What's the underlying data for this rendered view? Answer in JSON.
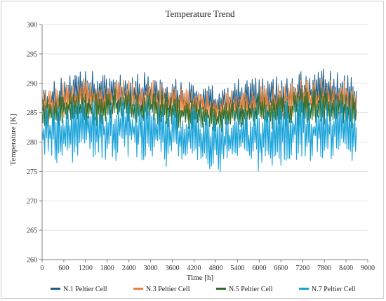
{
  "chart_data": {
    "type": "line",
    "title": "Temperature Trend",
    "xlabel": "Time [h]",
    "ylabel": "Temperature [K]",
    "xlim": [
      0,
      9000
    ],
    "ylim": [
      260,
      300
    ],
    "x_ticks": [
      0,
      600,
      1200,
      1800,
      2400,
      3000,
      3600,
      4200,
      4800,
      5400,
      6000,
      6600,
      7200,
      7800,
      8400,
      9000
    ],
    "y_ticks": [
      260,
      265,
      270,
      275,
      280,
      285,
      290,
      295,
      300
    ],
    "grid": "horizontal",
    "legend_position": "bottom",
    "x": [
      0,
      300,
      600,
      900,
      1200,
      1500,
      1800,
      2100,
      2400,
      2700,
      3000,
      3300,
      3600,
      3900,
      4200,
      4500,
      4800,
      5100,
      5400,
      5700,
      6000,
      6300,
      6600,
      6900,
      7200,
      7500,
      7800,
      8100,
      8400,
      8700
    ],
    "series": [
      {
        "name": "N.1 Peltier Cell",
        "color": "#1f5f8b",
        "upper": [
          290.5,
          290.2,
          292.0,
          291.5,
          292.5,
          292.0,
          291.5,
          292.2,
          292.0,
          291.8,
          292.2,
          291.5,
          291.0,
          290.5,
          290.5,
          290.0,
          289.5,
          290.0,
          291.0,
          290.5,
          291.5,
          290.8,
          291.5,
          292.0,
          292.5,
          292.0,
          292.5,
          291.8,
          292.0,
          290.5
        ],
        "lower": [
          284.5,
          284.0,
          284.5,
          285.0,
          285.0,
          284.5,
          285.0,
          285.0,
          284.8,
          285.0,
          285.0,
          284.5,
          284.0,
          284.0,
          284.2,
          284.0,
          283.5,
          284.0,
          284.0,
          284.0,
          284.0,
          284.0,
          284.5,
          284.5,
          285.0,
          285.0,
          285.0,
          284.5,
          284.5,
          284.0
        ]
      },
      {
        "name": "N.3 Peltier Cell",
        "color": "#e8823a",
        "upper": [
          289.0,
          288.8,
          290.5,
          290.0,
          291.0,
          290.5,
          290.0,
          290.8,
          290.5,
          290.2,
          290.8,
          290.0,
          289.5,
          289.0,
          289.0,
          288.5,
          288.0,
          288.5,
          289.5,
          289.0,
          290.0,
          289.3,
          290.0,
          290.5,
          291.0,
          290.5,
          291.0,
          290.3,
          290.5,
          289.0
        ],
        "lower": [
          284.0,
          283.5,
          284.0,
          284.5,
          284.5,
          284.0,
          284.5,
          284.5,
          284.3,
          284.5,
          284.5,
          284.0,
          283.5,
          283.5,
          283.7,
          283.5,
          283.0,
          283.5,
          283.5,
          283.5,
          283.5,
          283.5,
          284.0,
          284.0,
          284.5,
          284.5,
          284.5,
          284.0,
          284.0,
          283.5
        ]
      },
      {
        "name": "N.5 Peltier Cell",
        "color": "#2e6f2a",
        "upper": [
          287.5,
          287.3,
          289.0,
          288.5,
          289.5,
          289.0,
          288.5,
          289.3,
          289.0,
          288.7,
          289.3,
          288.5,
          288.0,
          287.5,
          287.5,
          287.0,
          286.5,
          287.0,
          288.0,
          287.5,
          288.5,
          287.8,
          288.5,
          289.0,
          289.5,
          289.0,
          289.5,
          288.8,
          289.0,
          287.5
        ],
        "lower": [
          282.5,
          282.0,
          282.8,
          283.0,
          283.0,
          282.5,
          283.0,
          283.0,
          282.8,
          283.0,
          283.0,
          282.5,
          282.0,
          282.0,
          282.2,
          282.0,
          281.5,
          282.0,
          282.0,
          282.0,
          282.0,
          282.0,
          282.5,
          282.5,
          283.0,
          283.0,
          283.0,
          282.5,
          282.5,
          282.0
        ]
      },
      {
        "name": "N.7 Peltier Cell",
        "color": "#1aa3d9",
        "upper": [
          286.0,
          286.0,
          287.5,
          287.0,
          288.0,
          287.5,
          287.0,
          287.8,
          287.5,
          287.2,
          287.8,
          287.0,
          286.5,
          286.0,
          286.0,
          285.5,
          285.0,
          285.5,
          286.5,
          286.0,
          287.0,
          286.3,
          287.0,
          287.5,
          288.0,
          287.5,
          288.0,
          287.3,
          287.5,
          286.0
        ],
        "lower": [
          277.0,
          276.0,
          276.5,
          276.0,
          276.5,
          276.0,
          277.0,
          276.5,
          277.0,
          276.5,
          276.5,
          276.0,
          275.0,
          275.5,
          275.5,
          275.0,
          274.5,
          275.5,
          275.5,
          275.0,
          274.5,
          275.0,
          276.0,
          276.5,
          276.5,
          276.0,
          276.5,
          276.0,
          276.0,
          277.5
        ]
      }
    ]
  }
}
